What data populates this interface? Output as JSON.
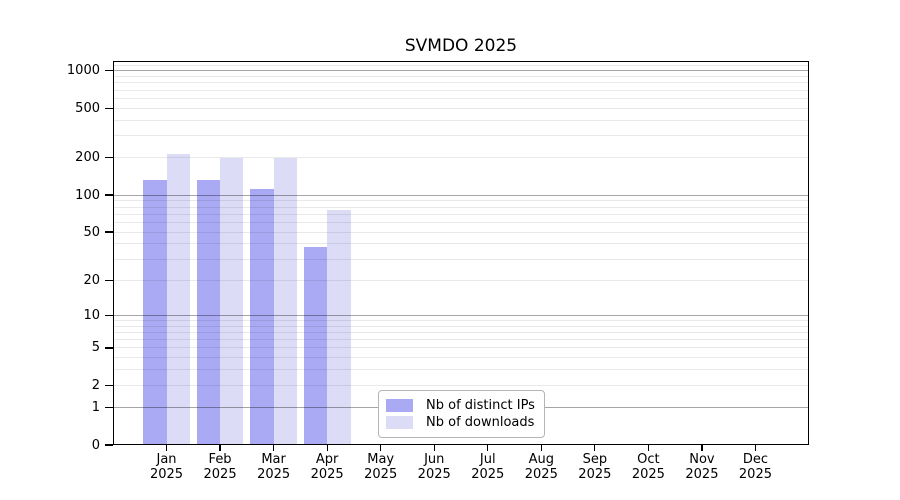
{
  "chart_data": {
    "type": "bar",
    "title": "SVMDO 2025",
    "year": "2025",
    "categories": [
      "Jan",
      "Feb",
      "Mar",
      "Apr",
      "May",
      "Jun",
      "Jul",
      "Aug",
      "Sep",
      "Oct",
      "Nov",
      "Dec"
    ],
    "series": [
      {
        "name": "Nb of distinct IPs",
        "color": "#a9a9f4",
        "values": [
          132,
          132,
          113,
          38,
          0,
          0,
          0,
          0,
          0,
          0,
          0,
          0
        ]
      },
      {
        "name": "Nb of downloads",
        "color": "#dcdcf7",
        "values": [
          215,
          200,
          198,
          75,
          0,
          0,
          0,
          0,
          0,
          0,
          0,
          0
        ]
      }
    ],
    "y_scale": "log1p",
    "y_max": 1200,
    "y_ticks": [
      0,
      1,
      2,
      5,
      10,
      20,
      50,
      100,
      200,
      500,
      1000
    ],
    "y_grid_major": [
      1,
      10,
      100,
      1000
    ],
    "y_grid_minor": [
      2,
      3,
      4,
      5,
      6,
      7,
      8,
      9,
      20,
      30,
      40,
      50,
      60,
      70,
      80,
      90,
      200,
      300,
      400,
      500,
      600,
      700,
      800,
      900,
      1100
    ],
    "grid": "horizontal-only",
    "legend_position": "inside-bottom-center",
    "xlabel": "",
    "ylabel": ""
  }
}
